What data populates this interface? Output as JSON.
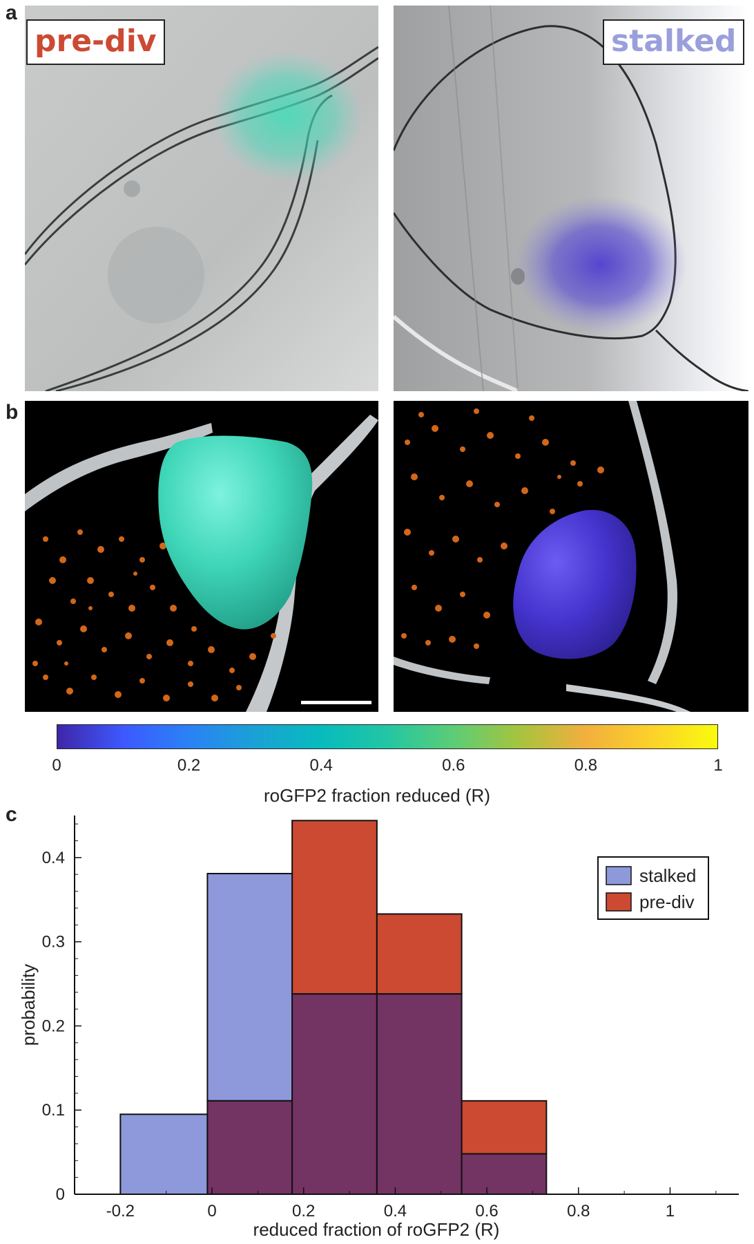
{
  "panels": {
    "a": {
      "label": "a",
      "left_tag": {
        "text": "pre-div",
        "color": "#cc4a33"
      },
      "right_tag": {
        "text": "stalked",
        "color": "#9a9fdc"
      }
    },
    "b": {
      "label": "b"
    },
    "c": {
      "label": "c"
    }
  },
  "colorbar": {
    "label": "roGFP2 fraction reduced (R)",
    "ticks": [
      "0",
      "0.2",
      "0.4",
      "0.6",
      "0.8",
      "1"
    ],
    "colormap": "parula"
  },
  "colors": {
    "stalked": "#8e99dc",
    "pre_div": "#cb4a31",
    "overlap": "#733363",
    "predivision_overlay": "#4bd6b8",
    "stalked_overlay": "#4a3ac4",
    "ribosomes": "#d9640f"
  },
  "chart_data": {
    "type": "histogram",
    "xlabel": "reduced fraction of roGFP2 (R)",
    "ylabel": "probability",
    "xlim": [
      -0.3,
      1.15
    ],
    "ylim": [
      0,
      0.45
    ],
    "xticks": [
      "-0.2",
      "0",
      "0.2",
      "0.4",
      "0.6",
      "0.8",
      "1"
    ],
    "yticks": [
      "0",
      "0.1",
      "0.2",
      "0.3",
      "0.4"
    ],
    "bin_edges": [
      -0.2,
      -0.01,
      0.175,
      0.36,
      0.545,
      0.73
    ],
    "series": [
      {
        "name": "stalked",
        "values": [
          0.095,
          0.381,
          0.238,
          0.238,
          0.048
        ]
      },
      {
        "name": "pre-div",
        "values": [
          0.0,
          0.111,
          0.444,
          0.333,
          0.111
        ]
      }
    ],
    "legend": {
      "position": "top-right",
      "entries": [
        "stalked",
        "pre-div"
      ]
    },
    "grid": false
  }
}
